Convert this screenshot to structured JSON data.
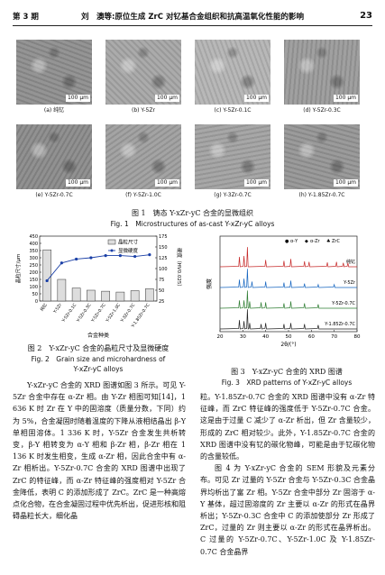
{
  "header": {
    "issue": "第 3 期",
    "title": "刘　澳等:原位生成 ZrC 对钇基合金组织和抗高温氧化性能的影响",
    "page": "23"
  },
  "fig1": {
    "scale": "100 μm",
    "panels": [
      {
        "label": "(a) 纯钇"
      },
      {
        "label": "(b) Y-5Zr"
      },
      {
        "label": "(c) Y-5Zr-0.1C"
      },
      {
        "label": "(d) Y-5Zr-0.3C"
      },
      {
        "label": "(e) Y-5Zr-0.7C"
      },
      {
        "label": "(f) Y-5Zr-1.0C"
      },
      {
        "label": "(g) Y-3Zr-0.7C"
      },
      {
        "label": "(h) Y-1.85Zr-0.7C"
      }
    ],
    "caption_cn": "图 1　铸态 Y-xZr-yC 合金的显微组织",
    "caption_en": "Fig. 1　Microstructures of as-cast Y-xZr-yC alloys"
  },
  "fig2": {
    "caption_cn": "图 2　Y-xZr-yC 合金的晶粒尺寸及显微硬度",
    "caption_en1": "Fig. 2　Grain size and microhardness of",
    "caption_en2": "Y-xZr-yC alloys",
    "chart_data": {
      "type": "bar",
      "categories": [
        "纯钇",
        "Y-5Zr",
        "Y-5Zr-0.1C",
        "Y-5Zr-0.3C",
        "Y-5Zr-0.7C",
        "Y-5Zr-1.0C",
        "Y-3Zr-0.7C",
        "Y-1.85Zr-0.7C"
      ],
      "series": [
        {
          "name": "晶粒尺寸",
          "values": [
            355,
            150,
            90,
            75,
            68,
            62,
            72,
            85
          ]
        },
        {
          "name": "显微硬度",
          "values": [
            72,
            113,
            122,
            125,
            130,
            130,
            128,
            132
          ]
        }
      ],
      "xlabel": "合金种类",
      "ylabel": "晶粒尺寸/μm",
      "ylabel_right": "硬度（HV0.025）",
      "ylim": [
        0,
        450
      ],
      "yticks": [
        "0",
        "50",
        "100",
        "150",
        "200",
        "250",
        "300",
        "350",
        "400",
        "450"
      ],
      "ylim_right": [
        25,
        175
      ],
      "yticks_right": [
        "25",
        "50",
        "75",
        "100",
        "125",
        "150",
        "175"
      ]
    }
  },
  "fig3": {
    "caption_cn": "图 3　Y-xZr-yC 合金的 XRD 图谱",
    "caption_en": "Fig. 3　XRD patterns of Y-xZr-yC alloys",
    "chart_data": {
      "type": "line",
      "xlabel": "2θ/(°)",
      "ylabel": "强度",
      "xlim": [
        20,
        80
      ],
      "xticks": [
        "20",
        "30",
        "40",
        "50",
        "60",
        "70",
        "80"
      ],
      "legend": [
        "α-Y",
        "α-Zr",
        "ZrC"
      ],
      "series": [
        {
          "name": "纯钇",
          "color": "#c62828",
          "x": [
            28.5,
            30.5,
            32,
            40,
            48,
            51,
            57,
            59,
            67,
            71,
            74,
            76
          ],
          "values": [
            0.5,
            0.55,
            1.0,
            0.35,
            0.3,
            0.4,
            0.28,
            0.25,
            0.22,
            0.25,
            0.2,
            0.2
          ]
        },
        {
          "name": "Y-5Zr",
          "color": "#1565c0",
          "x": [
            28.5,
            30.5,
            32,
            34,
            40,
            48,
            51,
            57,
            63,
            70
          ],
          "values": [
            0.4,
            0.45,
            0.95,
            0.3,
            0.3,
            0.25,
            0.35,
            0.2,
            0.15,
            0.15
          ]
        },
        {
          "name": "Y-5Zr-0.7C",
          "color": "#2e7d32",
          "x": [
            28.5,
            30.5,
            32,
            33,
            38,
            40,
            48,
            51,
            57,
            63
          ],
          "values": [
            0.4,
            0.4,
            0.9,
            0.35,
            0.3,
            0.3,
            0.25,
            0.35,
            0.25,
            0.2
          ]
        },
        {
          "name": "Y-1.85Zr-0.7C",
          "color": "#222222",
          "x": [
            28.5,
            30.5,
            32,
            33,
            38,
            40,
            48,
            51,
            57,
            63
          ],
          "values": [
            0.45,
            0.4,
            1.0,
            0.3,
            0.25,
            0.3,
            0.25,
            0.3,
            0.25,
            0.2
          ]
        }
      ]
    }
  },
  "left_text": {
    "p1": "Y-xZr-yC 合金的 XRD 图谱如图 3 所示。可见 Y-5Zr 合金中存在 α-Zr 相。由 Y-Zr 相图可知[14]，1 636 K 时 Zr 在 Y 中的固溶度（质量分数，下同）约为 5%，合金凝固时随着温度的下降从液相结晶出 β-Y 单相固溶体。1 336 K 时，Y-5Zr 合金发生共析转变，β-Y 相转变为 α-Y 相和 β-Zr 相，β-Zr 相在 1 136 K 时发生相变，生成 α-Zr 相，因此合金中有 α-Zr 相析出。Y-5Zr-0.7C 合金的 XRD 图谱中出现了 ZrC 的特征峰，而 α-Zr 特征峰的强度相对 Y-5Zr 合金降低，表明 C 的添加形成了 ZrC。ZrC 是一种高熔点化合物，在合金凝固过程中优先析出，促进形核和阻碍晶粒长大，细化晶"
  },
  "right_text": {
    "p1": "粒。Y-1.85Zr-0.7C 合金的 XRD 图谱中没有 α-Zr 特征峰，而 ZrC 特征峰的强度低于 Y-5Zr-0.7C 合金。这是由于过量 C 减少了 α-Zr 析出，但 Zr 含量较少，形成的 ZrC 相对较少。此外，Y-1.85Zr-0.7C 合金的 XRD 图谱中没有钇的碳化物峰，可能是由于钇碳化物的含量较低。",
    "p2": "图 4 为 Y-xZr-yC 合金的 SEM 形貌及元素分布。可见 Zr 过量的 Y-5Zr 合金与 Y-5Zr-0.3C 合金晶界均析出了富 Zr 相。Y-5Zr 合金中部分 Zr 固溶于 α-Y 基体，超过固溶度的 Zr 主要以 α-Zr 的形式在晶界析出；Y-5Zr-0.3C 合金中 C 的添加使部分 Zr 形成了 ZrC，过量的 Zr 则主要以 α-Zr 的形式在晶界析出。C 过量的 Y-5Zr-0.7C、Y-5Zr-1.0C 及 Y-1.85Zr-0.7C 合金晶界"
  }
}
